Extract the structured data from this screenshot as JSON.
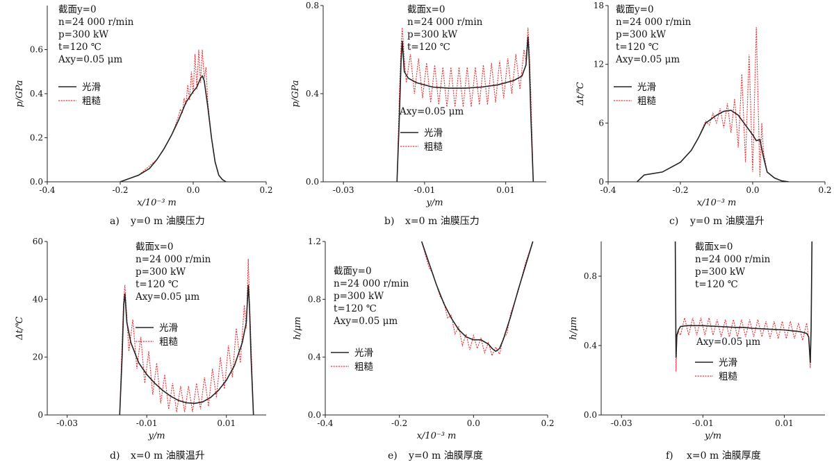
{
  "legend": {
    "smooth": "光滑",
    "rough": "粗糙"
  },
  "colors": {
    "smooth": "#222222",
    "rough": "#e8343a",
    "axis": "#222222"
  },
  "chart_data": [
    {
      "id": "a",
      "type": "line",
      "caption_letter": "a)",
      "caption_text": "y=0 m 油膜压力",
      "xlabel": "x/10⁻³ m",
      "ylabel": "p/GPa",
      "xlim": [
        -0.4,
        0.2
      ],
      "ylim": [
        0,
        0.8
      ],
      "xticks": [
        -0.4,
        -0.2,
        0.0,
        0.2
      ],
      "xtick_labels": [
        "-0.4",
        "-0.2",
        "0.0",
        "0.2"
      ],
      "yticks": [
        0.0,
        0.2,
        0.4,
        0.6
      ],
      "ytick_labels": [
        "0.0",
        "0.2",
        "0.4",
        "0.6"
      ],
      "annotations": [
        "截面y=0",
        "n=24 000 r/min",
        "p=300 kW",
        "t=120 ℃",
        "Axy=0.05 μm"
      ],
      "series": [
        {
          "name": "光滑",
          "x": [
            -0.2,
            -0.15,
            -0.12,
            -0.1,
            -0.08,
            -0.06,
            -0.04,
            -0.02,
            0.0,
            0.01,
            0.02,
            0.025,
            0.03,
            0.04,
            0.05,
            0.06,
            0.07,
            0.08,
            0.09
          ],
          "y": [
            0.0,
            0.03,
            0.06,
            0.1,
            0.15,
            0.21,
            0.28,
            0.36,
            0.41,
            0.43,
            0.47,
            0.48,
            0.46,
            0.34,
            0.2,
            0.09,
            0.03,
            0.01,
            0.0
          ]
        },
        {
          "name": "粗糙",
          "x": [
            -0.2,
            -0.15,
            -0.1,
            -0.08,
            -0.06,
            -0.05,
            -0.04,
            -0.035,
            -0.03,
            -0.025,
            -0.02,
            -0.015,
            -0.01,
            -0.005,
            0.0,
            0.005,
            0.01,
            0.015,
            0.02,
            0.025,
            0.03,
            0.035,
            0.04,
            0.05,
            0.06,
            0.07,
            0.08,
            0.09
          ],
          "y": [
            0.0,
            0.03,
            0.1,
            0.15,
            0.21,
            0.25,
            0.3,
            0.33,
            0.31,
            0.38,
            0.35,
            0.44,
            0.37,
            0.5,
            0.4,
            0.58,
            0.42,
            0.6,
            0.45,
            0.6,
            0.47,
            0.52,
            0.36,
            0.2,
            0.09,
            0.03,
            0.01,
            0.0
          ]
        }
      ]
    },
    {
      "id": "b",
      "type": "line",
      "caption_letter": "b)",
      "caption_text": "x=0 m 油膜压力",
      "xlabel": "y/m",
      "ylabel": "p/GPa",
      "xlim": [
        -0.035,
        0.02
      ],
      "ylim": [
        0,
        0.8
      ],
      "xticks": [
        -0.03,
        -0.01,
        0.01
      ],
      "xtick_labels": [
        "-0.03",
        "-0.01",
        "0.01"
      ],
      "yticks": [
        0.0,
        0.4,
        0.8
      ],
      "ytick_labels": [
        "0.0",
        "0.4",
        "0.8"
      ],
      "annotations": [
        "截面x=0",
        "n=24 000 r/min",
        "p=300 kW",
        "t=120 ℃"
      ],
      "annotations_lower": [
        "Axy=0.05 μm"
      ],
      "series": [
        {
          "name": "光滑",
          "x": [
            -0.0168,
            -0.0162,
            -0.0158,
            -0.0155,
            -0.015,
            -0.014,
            -0.012,
            -0.008,
            -0.004,
            0.0,
            0.004,
            0.008,
            0.012,
            0.014,
            0.015,
            0.0155,
            0.0158,
            0.0162,
            0.0168
          ],
          "y": [
            0.0,
            0.3,
            0.55,
            0.64,
            0.5,
            0.47,
            0.45,
            0.43,
            0.425,
            0.425,
            0.43,
            0.44,
            0.46,
            0.48,
            0.53,
            0.66,
            0.55,
            0.3,
            0.0
          ]
        },
        {
          "name": "粗糙",
          "x": [
            -0.0168,
            -0.0162,
            -0.0158,
            -0.0155,
            -0.015,
            -0.0145,
            -0.0135,
            -0.0125,
            -0.0115,
            -0.0105,
            -0.0095,
            -0.0085,
            -0.0075,
            -0.0065,
            -0.0055,
            -0.0045,
            -0.0035,
            -0.0025,
            -0.0015,
            -0.0005,
            0.0005,
            0.0015,
            0.0025,
            0.0035,
            0.0045,
            0.0055,
            0.0065,
            0.0075,
            0.0085,
            0.0095,
            0.0105,
            0.0115,
            0.0125,
            0.0135,
            0.0145,
            0.015,
            0.0155,
            0.0158,
            0.0162,
            0.0168
          ],
          "y": [
            0.0,
            0.4,
            0.62,
            0.7,
            0.56,
            0.45,
            0.58,
            0.4,
            0.56,
            0.38,
            0.54,
            0.36,
            0.53,
            0.35,
            0.52,
            0.34,
            0.52,
            0.34,
            0.52,
            0.34,
            0.52,
            0.34,
            0.52,
            0.35,
            0.53,
            0.35,
            0.54,
            0.36,
            0.55,
            0.38,
            0.56,
            0.4,
            0.58,
            0.42,
            0.6,
            0.55,
            0.7,
            0.6,
            0.4,
            0.0
          ]
        }
      ]
    },
    {
      "id": "c",
      "type": "line",
      "caption_letter": "c)",
      "caption_text": "y=0 m 油膜温升",
      "xlabel": "x/10⁻³ m",
      "ylabel": "Δt/℃",
      "xlim": [
        -0.4,
        0.2
      ],
      "ylim": [
        0,
        18
      ],
      "xticks": [
        -0.4,
        -0.2,
        0.0,
        0.2
      ],
      "xtick_labels": [
        "-0.4",
        "-0.2",
        "0.0",
        "0.2"
      ],
      "yticks": [
        0,
        6,
        12,
        18
      ],
      "ytick_labels": [
        "0",
        "6",
        "12",
        "18"
      ],
      "annotations": [
        "截面y=0",
        "n=24 000 r/min",
        "p=300 kW",
        "t=120 ℃",
        "Axy=0.05 μm"
      ],
      "series": [
        {
          "name": "光滑",
          "x": [
            -0.32,
            -0.3,
            -0.25,
            -0.2,
            -0.17,
            -0.15,
            -0.13,
            -0.1,
            -0.08,
            -0.06,
            -0.04,
            -0.02,
            0.0,
            0.01,
            0.02,
            0.03,
            0.04,
            0.06,
            0.08,
            0.1
          ],
          "y": [
            0.0,
            0.7,
            1.0,
            2.0,
            3.2,
            4.5,
            6.0,
            6.8,
            7.2,
            7.3,
            6.8,
            5.8,
            4.8,
            4.2,
            4.3,
            2.5,
            1.0,
            0.4,
            0.1,
            0.0
          ]
        },
        {
          "name": "粗糙",
          "x": [
            -0.32,
            -0.3,
            -0.25,
            -0.2,
            -0.17,
            -0.15,
            -0.13,
            -0.12,
            -0.11,
            -0.1,
            -0.09,
            -0.08,
            -0.07,
            -0.06,
            -0.05,
            -0.04,
            -0.03,
            -0.02,
            -0.01,
            0.0,
            0.01,
            0.02,
            0.025,
            0.03,
            0.04,
            0.06,
            0.08,
            0.1
          ],
          "y": [
            0.0,
            0.7,
            1.0,
            2.0,
            3.2,
            4.5,
            6.2,
            5.8,
            7.0,
            6.0,
            7.5,
            5.5,
            8.0,
            5.0,
            8.5,
            3.5,
            11.0,
            2.0,
            13.0,
            1.0,
            15.8,
            0.5,
            6.0,
            3.0,
            1.0,
            0.4,
            0.1,
            0.0
          ]
        }
      ]
    },
    {
      "id": "d",
      "type": "line",
      "caption_letter": "d)",
      "caption_text": "x=0 m 油膜温升",
      "xlabel": "y/m",
      "ylabel": "Δt/℃",
      "xlim": [
        -0.035,
        0.02
      ],
      "ylim": [
        0,
        60
      ],
      "xticks": [
        -0.03,
        -0.01,
        0.01
      ],
      "xtick_labels": [
        "-0.03",
        "-0.01",
        "0.01"
      ],
      "yticks": [
        0,
        20,
        40,
        60
      ],
      "ytick_labels": [
        "0",
        "20",
        "40",
        "60"
      ],
      "annotations": [
        "截面x=0",
        "n=24 000 r/min",
        "p=300 kW",
        "t=120 ℃",
        "Axy=0.05 μm"
      ],
      "series": [
        {
          "name": "光滑",
          "x": [
            -0.0168,
            -0.0162,
            -0.0158,
            -0.0155,
            -0.015,
            -0.014,
            -0.012,
            -0.01,
            -0.008,
            -0.006,
            -0.004,
            -0.002,
            0.0,
            0.002,
            0.004,
            0.006,
            0.008,
            0.01,
            0.012,
            0.014,
            0.015,
            0.0155,
            0.0158,
            0.0162,
            0.0168
          ],
          "y": [
            0.0,
            20.0,
            38.0,
            42.0,
            32.0,
            25.0,
            18.0,
            14.0,
            11.0,
            8.5,
            6.5,
            5.0,
            4.2,
            4.0,
            4.5,
            6.0,
            8.5,
            12.0,
            17.0,
            25.0,
            32.0,
            45.0,
            38.0,
            20.0,
            0.0
          ]
        },
        {
          "name": "粗糙",
          "x": [
            -0.0168,
            -0.0162,
            -0.0158,
            -0.0155,
            -0.015,
            -0.0145,
            -0.0135,
            -0.0125,
            -0.0115,
            -0.0105,
            -0.0095,
            -0.0085,
            -0.0075,
            -0.0065,
            -0.0055,
            -0.0045,
            -0.0035,
            -0.0025,
            -0.0015,
            -0.0005,
            0.0005,
            0.0015,
            0.0025,
            0.0035,
            0.0045,
            0.0055,
            0.0065,
            0.0075,
            0.0085,
            0.0095,
            0.0105,
            0.0115,
            0.0125,
            0.0135,
            0.0145,
            0.015,
            0.0155,
            0.0158,
            0.0162,
            0.0168
          ],
          "y": [
            0.0,
            25.0,
            40.0,
            45.0,
            34.0,
            22.0,
            33.0,
            16.0,
            27.0,
            11.0,
            22.0,
            7.0,
            18.0,
            4.0,
            14.0,
            2.0,
            11.0,
            1.0,
            10.0,
            1.0,
            10.0,
            1.0,
            11.0,
            2.0,
            13.0,
            3.0,
            16.0,
            6.0,
            20.0,
            9.0,
            24.0,
            13.0,
            30.0,
            18.0,
            38.0,
            30.0,
            54.0,
            40.0,
            25.0,
            0.0
          ]
        }
      ]
    },
    {
      "id": "e",
      "type": "line",
      "caption_letter": "e)",
      "caption_text": "y=0 m 油膜厚度",
      "xlabel": "x/10⁻³ m",
      "ylabel": "h/μm",
      "xlim": [
        -0.4,
        0.2
      ],
      "ylim": [
        0,
        1.2
      ],
      "xticks": [
        -0.4,
        -0.2,
        0.0,
        0.2
      ],
      "xtick_labels": [
        "-0.4",
        "-0.2",
        "0.0",
        "0.2"
      ],
      "yticks": [
        0.0,
        0.4,
        0.8,
        1.2
      ],
      "ytick_labels": [
        "0.0",
        "0.4",
        "0.8",
        "1.2"
      ],
      "annotations": [
        "截面y=0",
        "n=24 000 r/min",
        "p=300 kW",
        "t=120 ℃",
        "Axy=0.05 μm"
      ],
      "series": [
        {
          "name": "光滑",
          "x": [
            -0.14,
            -0.12,
            -0.1,
            -0.08,
            -0.06,
            -0.04,
            -0.02,
            0.0,
            0.02,
            0.04,
            0.05,
            0.06,
            0.07,
            0.08,
            0.1,
            0.12,
            0.14,
            0.16
          ],
          "y": [
            1.2,
            1.05,
            0.9,
            0.77,
            0.67,
            0.59,
            0.54,
            0.52,
            0.52,
            0.49,
            0.46,
            0.44,
            0.46,
            0.52,
            0.68,
            0.86,
            1.03,
            1.2
          ]
        },
        {
          "name": "粗糙",
          "x": [
            -0.14,
            -0.12,
            -0.11,
            -0.1,
            -0.09,
            -0.08,
            -0.07,
            -0.06,
            -0.05,
            -0.04,
            -0.03,
            -0.02,
            -0.01,
            0.0,
            0.01,
            0.02,
            0.03,
            0.04,
            0.05,
            0.06,
            0.07,
            0.08,
            0.09,
            0.1,
            0.12,
            0.14,
            0.16
          ],
          "y": [
            1.2,
            1.02,
            0.98,
            0.9,
            0.82,
            0.78,
            0.67,
            0.69,
            0.56,
            0.61,
            0.48,
            0.56,
            0.45,
            0.55,
            0.46,
            0.53,
            0.43,
            0.5,
            0.41,
            0.47,
            0.42,
            0.53,
            0.56,
            0.7,
            0.85,
            1.05,
            1.2
          ]
        }
      ]
    },
    {
      "id": "f",
      "type": "line",
      "caption_letter": "f)",
      "caption_text": "x=0 m 油膜厚度",
      "xlabel": "y/m",
      "ylabel": "h/μm",
      "xlim": [
        -0.035,
        0.02
      ],
      "ylim": [
        0,
        1.0
      ],
      "xticks": [
        -0.03,
        -0.01,
        0.01
      ],
      "xtick_labels": [
        "-0.03",
        "-0.01",
        "0.01"
      ],
      "yticks": [
        0.0,
        0.4,
        0.8
      ],
      "ytick_labels": [
        "0.0",
        "0.4",
        "0.8"
      ],
      "annotations": [
        "截面x=0",
        "n=24 000 r/min",
        "p=300 kW",
        "t=120 ℃"
      ],
      "annotations_lower": [
        "Axy=0.05 μm"
      ],
      "series": [
        {
          "name": "光滑",
          "x": [
            -0.0168,
            -0.0166,
            -0.0164,
            -0.016,
            -0.0155,
            -0.014,
            -0.01,
            -0.006,
            -0.002,
            0.0,
            0.002,
            0.006,
            0.01,
            0.014,
            0.0155,
            0.016,
            0.0164,
            0.0166,
            0.0168
          ],
          "y": [
            1.0,
            0.33,
            0.46,
            0.49,
            0.51,
            0.515,
            0.515,
            0.51,
            0.505,
            0.505,
            0.5,
            0.495,
            0.49,
            0.48,
            0.47,
            0.45,
            0.3,
            0.5,
            1.0
          ]
        },
        {
          "name": "粗糙",
          "x": [
            -0.0168,
            -0.0166,
            -0.0164,
            -0.016,
            -0.0155,
            -0.0145,
            -0.0135,
            -0.0125,
            -0.0115,
            -0.0105,
            -0.0095,
            -0.0085,
            -0.0075,
            -0.0065,
            -0.0055,
            -0.0045,
            -0.0035,
            -0.0025,
            -0.0015,
            -0.0005,
            0.0005,
            0.0015,
            0.0025,
            0.0035,
            0.0045,
            0.0055,
            0.0065,
            0.0075,
            0.0085,
            0.0095,
            0.0105,
            0.0115,
            0.0125,
            0.0135,
            0.0145,
            0.0155,
            0.016,
            0.0164,
            0.0166
          ],
          "y": [
            1.0,
            0.25,
            0.45,
            0.48,
            0.46,
            0.56,
            0.46,
            0.56,
            0.46,
            0.56,
            0.46,
            0.56,
            0.46,
            0.55,
            0.45,
            0.55,
            0.45,
            0.55,
            0.45,
            0.55,
            0.45,
            0.55,
            0.45,
            0.55,
            0.45,
            0.54,
            0.44,
            0.54,
            0.44,
            0.54,
            0.44,
            0.54,
            0.44,
            0.53,
            0.43,
            0.53,
            0.44,
            0.27,
            0.5
          ]
        }
      ]
    }
  ]
}
